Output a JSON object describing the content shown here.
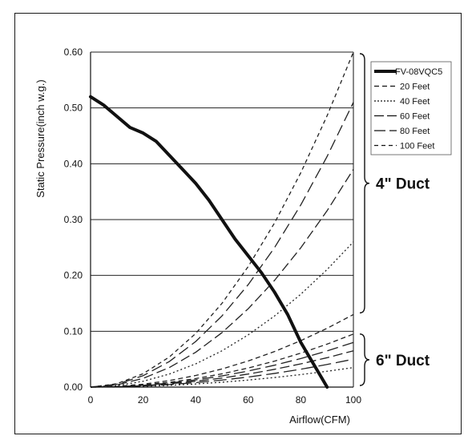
{
  "chart_data": {
    "type": "line",
    "xlabel": "Airflow(CFM)",
    "ylabel": "Static Pressure(inch w.g.)",
    "xlim": [
      0,
      100
    ],
    "ylim": [
      0,
      0.6
    ],
    "xticks": [
      "0",
      "20",
      "40",
      "60",
      "80",
      "100"
    ],
    "yticks": [
      "0.00",
      "0.10",
      "0.20",
      "0.30",
      "0.40",
      "0.50",
      "0.60"
    ],
    "grid": "horizontal",
    "legend_position": "top-right",
    "legend": [
      "FV-08VQC5",
      "20 Feet",
      "40 Feet",
      "60 Feet",
      "80 Feet",
      "100 Feet"
    ],
    "fan_curve": {
      "name": "FV-08VQC5",
      "x": [
        0,
        5,
        10,
        15,
        20,
        25,
        30,
        35,
        40,
        45,
        50,
        55,
        60,
        65,
        70,
        75,
        80,
        85,
        90
      ],
      "y": [
        0.52,
        0.505,
        0.485,
        0.465,
        0.455,
        0.44,
        0.415,
        0.39,
        0.365,
        0.335,
        0.3,
        0.265,
        0.235,
        0.205,
        0.17,
        0.13,
        0.08,
        0.04,
        0.0
      ]
    },
    "duct_groups": [
      {
        "name": "4\" Duct",
        "series": [
          {
            "name": "20 Feet",
            "x": [
              0,
              10,
              20,
              30,
              40,
              50,
              60,
              70,
              80,
              90,
              100
            ],
            "y": [
              0,
              0.006,
              0.024,
              0.054,
              0.096,
              0.15,
              0.216,
              0.294,
              0.384,
              0.486,
              0.6
            ]
          },
          {
            "name": "40 Feet",
            "x": [
              0,
              10,
              20,
              30,
              40,
              50,
              60,
              70,
              80,
              90,
              100
            ],
            "y": [
              0,
              0.0051,
              0.0204,
              0.0459,
              0.0816,
              0.1275,
              0.1836,
              0.2499,
              0.3264,
              0.4131,
              0.51
            ]
          },
          {
            "name": "60 Feet",
            "x": [
              0,
              10,
              20,
              30,
              40,
              50,
              60,
              70,
              80,
              90,
              100
            ],
            "y": [
              0,
              0.0039,
              0.0156,
              0.0351,
              0.0624,
              0.0975,
              0.1404,
              0.1911,
              0.2496,
              0.3159,
              0.39
            ]
          },
          {
            "name": "80 Feet",
            "x": [
              0,
              10,
              20,
              30,
              40,
              50,
              60,
              70,
              80,
              90,
              100
            ],
            "y": [
              0,
              0.0026,
              0.0104,
              0.0234,
              0.0416,
              0.065,
              0.0936,
              0.1274,
              0.1664,
              0.2106,
              0.26
            ]
          },
          {
            "name": "100 Feet",
            "x": [
              0,
              10,
              20,
              30,
              40,
              50,
              60,
              70,
              80,
              90,
              100
            ],
            "y": [
              0,
              0.0013,
              0.0052,
              0.0117,
              0.0208,
              0.0325,
              0.0468,
              0.0637,
              0.0832,
              0.1053,
              0.13
            ]
          }
        ]
      },
      {
        "name": "6\" Duct",
        "series": [
          {
            "name": "20 Feet",
            "x": [
              0,
              10,
              20,
              30,
              40,
              50,
              60,
              70,
              80,
              90,
              100
            ],
            "y": [
              0,
              0.00095,
              0.0038,
              0.00855,
              0.0152,
              0.02375,
              0.0342,
              0.04655,
              0.0608,
              0.07695,
              0.095
            ]
          },
          {
            "name": "40 Feet",
            "x": [
              0,
              10,
              20,
              30,
              40,
              50,
              60,
              70,
              80,
              90,
              100
            ],
            "y": [
              0,
              0.0008,
              0.0032,
              0.0072,
              0.0128,
              0.02,
              0.0288,
              0.0392,
              0.0512,
              0.0648,
              0.08
            ]
          },
          {
            "name": "60 Feet",
            "x": [
              0,
              10,
              20,
              30,
              40,
              50,
              60,
              70,
              80,
              90,
              100
            ],
            "y": [
              0,
              0.00065,
              0.0026,
              0.00585,
              0.0104,
              0.01625,
              0.0234,
              0.03185,
              0.0416,
              0.05265,
              0.065
            ]
          },
          {
            "name": "80 Feet",
            "x": [
              0,
              10,
              20,
              30,
              40,
              50,
              60,
              70,
              80,
              90,
              100
            ],
            "y": [
              0,
              0.0005,
              0.002,
              0.0045,
              0.008,
              0.0125,
              0.018,
              0.0245,
              0.032,
              0.0405,
              0.05
            ]
          },
          {
            "name": "100 Feet",
            "x": [
              0,
              10,
              20,
              30,
              40,
              50,
              60,
              70,
              80,
              90,
              100
            ],
            "y": [
              0,
              0.00035,
              0.0014,
              0.00315,
              0.0056,
              0.00875,
              0.0126,
              0.01715,
              0.0224,
              0.02835,
              0.035
            ]
          }
        ]
      }
    ]
  }
}
